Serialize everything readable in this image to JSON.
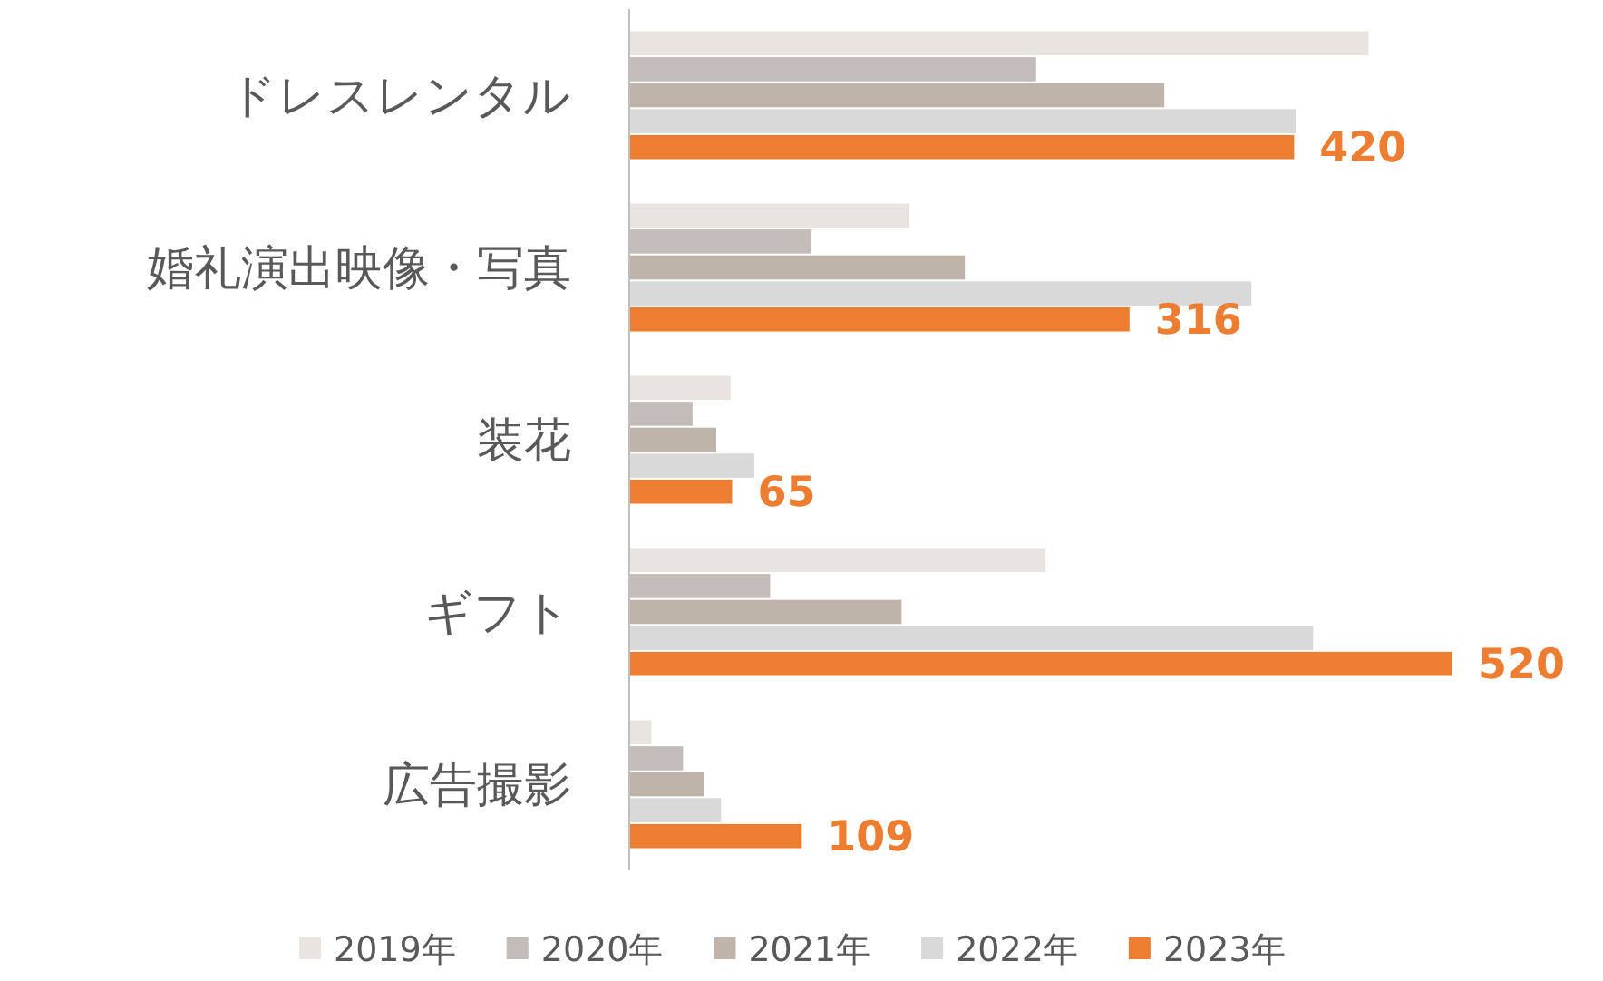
{
  "chart_data": {
    "type": "bar",
    "orientation": "horizontal",
    "legend": "bottom",
    "categories": [
      "ドレスレンタル",
      "婚礼演出映像・写真",
      "装花",
      "ギフト",
      "広告撮影"
    ],
    "series": [
      {
        "name": "2019年",
        "color": "#e8e4e0",
        "values": [
          467,
          177,
          64,
          263,
          14
        ]
      },
      {
        "name": "2020年",
        "color": "#c3bcb9",
        "values": [
          257,
          115,
          40,
          89,
          34
        ]
      },
      {
        "name": "2021年",
        "color": "#bfb4aa",
        "values": [
          338,
          212,
          55,
          172,
          47
        ]
      },
      {
        "name": "2022年",
        "color": "#d9d9d9",
        "values": [
          421,
          393,
          79,
          432,
          58
        ]
      },
      {
        "name": "2023年",
        "color": "#ed7d31",
        "values": [
          420,
          316,
          65,
          520,
          109
        ],
        "value_labels": [
          "420",
          "316",
          "65",
          "520",
          "109"
        ]
      }
    ]
  }
}
